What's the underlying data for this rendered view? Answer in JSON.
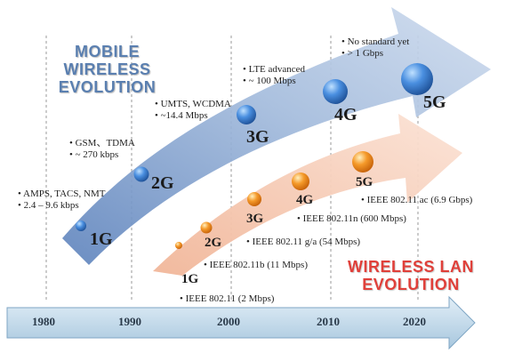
{
  "headings": {
    "mobile_line1": "MOBILE WIRELESS",
    "mobile_line2": "EVOLUTION",
    "wlan_line1": "WIRELESS LAN",
    "wlan_line2": "EVOLUTION"
  },
  "mobile": [
    {
      "gen": "1G",
      "notes": [
        "AMPS, TACS, NMT",
        "2.4 – 9.6 kbps"
      ]
    },
    {
      "gen": "2G",
      "notes": [
        "GSM、TDMA",
        "~ 270 kbps"
      ]
    },
    {
      "gen": "3G",
      "notes": [
        "UMTS, WCDMA",
        "~14.4 Mbps"
      ]
    },
    {
      "gen": "4G",
      "notes": [
        "LTE advanced",
        "~ 100 Mbps"
      ]
    },
    {
      "gen": "5G",
      "notes": [
        "No standard yet",
        "> 1 Gbps"
      ]
    }
  ],
  "wlan": [
    {
      "gen": "1G",
      "standard": "IEEE 802.11 (2 Mbps)"
    },
    {
      "gen": "2G",
      "standard": "IEEE 802.11b (11 Mbps)"
    },
    {
      "gen": "3G",
      "standard": "IEEE 802.11 g/a (54 Mbps)"
    },
    {
      "gen": "4G",
      "standard": "IEEE 802.11n (600 Mbps)"
    },
    {
      "gen": "5G",
      "standard": "IEEE 802.11 ac (6.9 Gbps)"
    }
  ],
  "timeline": [
    "1980",
    "1990",
    "2000",
    "2010",
    "2020"
  ],
  "colors": {
    "mobile_arrow": "#a9bfdd",
    "wlan_arrow": "#f6c3aa",
    "timeline_arrow": "#c5dbea",
    "mobile_bubble": "#3d7fd0",
    "wlan_bubble": "#f08a1e"
  }
}
